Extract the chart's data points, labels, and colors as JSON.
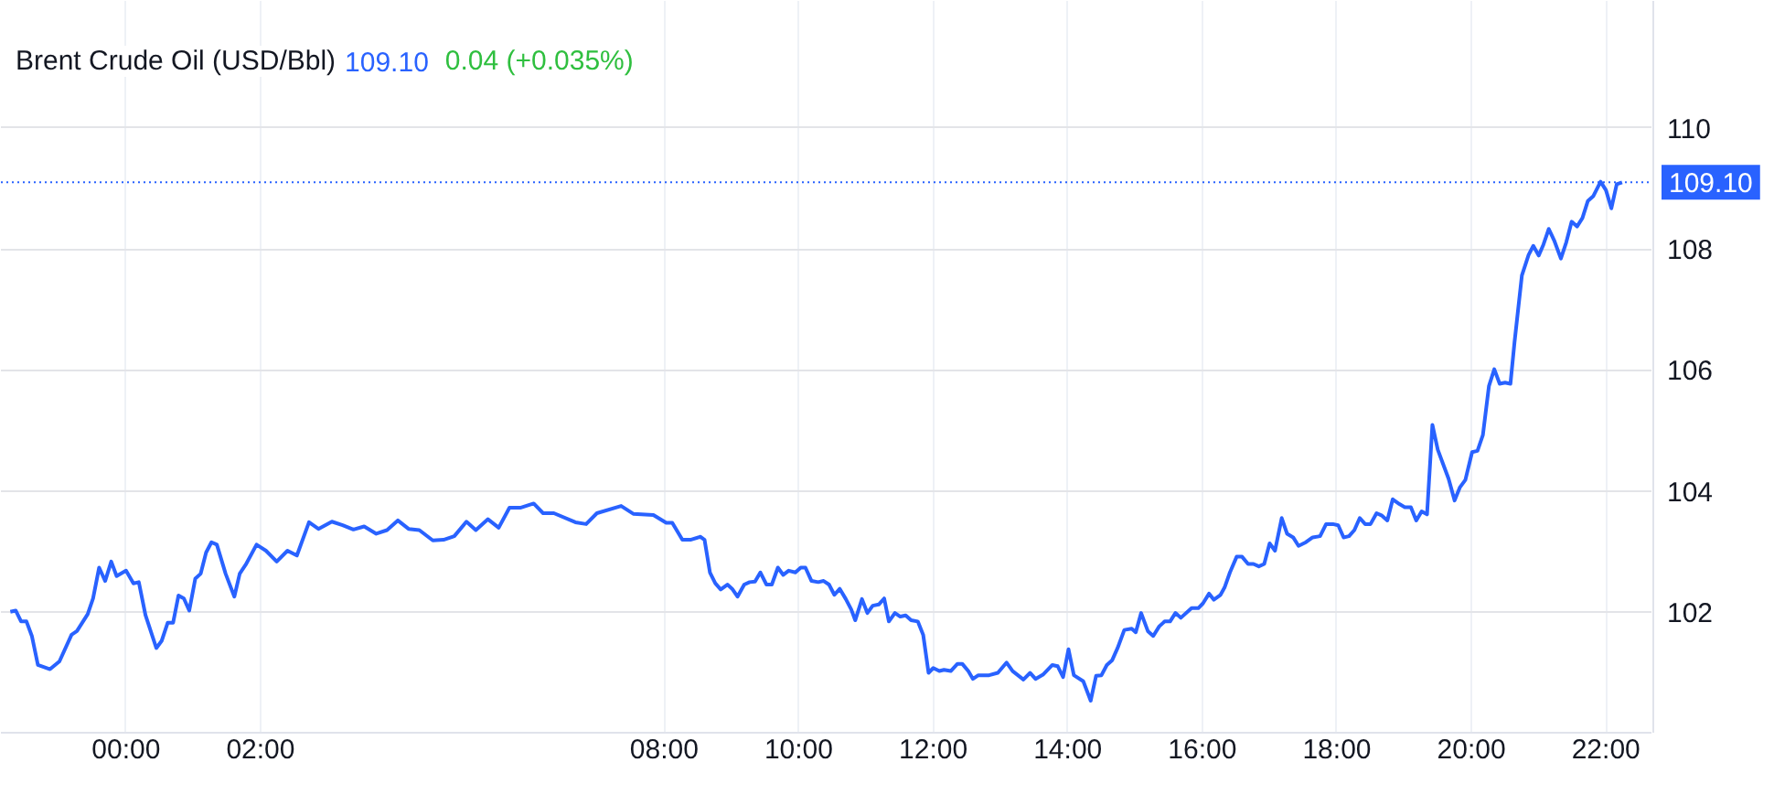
{
  "chart_data": {
    "type": "line",
    "title": "Brent Crude Oil (USD/Bbl)",
    "annotations": [
      "109.10",
      "0.04 (+0.035%)"
    ],
    "x": [
      -1.72,
      -1.64,
      -1.56,
      -1.48,
      -1.4,
      -1.31,
      -1.13,
      -0.99,
      -0.81,
      -0.73,
      -0.57,
      -0.49,
      -0.4,
      -0.31,
      -0.22,
      -0.14,
      0.0,
      0.11,
      0.19,
      0.29,
      0.45,
      0.53,
      0.62,
      0.7,
      0.78,
      0.86,
      0.94,
      1.03,
      1.11,
      1.19,
      1.27,
      1.35,
      1.48,
      1.61,
      1.69,
      1.78,
      1.94,
      2.08,
      2.24,
      2.4,
      2.54,
      2.72,
      2.86,
      3.06,
      3.22,
      3.38,
      3.54,
      3.72,
      3.88,
      4.04,
      4.2,
      4.36,
      4.56,
      4.72,
      4.88,
      5.06,
      5.2,
      5.38,
      5.54,
      5.7,
      5.86,
      6.06,
      6.2,
      6.36,
      6.68,
      6.84,
      7.0,
      7.36,
      7.54,
      7.84,
      8.03,
      8.12,
      8.27,
      8.39,
      8.54,
      8.6,
      8.68,
      8.76,
      8.84,
      8.94,
      9.01,
      9.09,
      9.19,
      9.27,
      9.35,
      9.43,
      9.52,
      9.6,
      9.69,
      9.77,
      9.85,
      9.95,
      10.03,
      10.1,
      10.19,
      10.29,
      10.37,
      10.45,
      10.53,
      10.61,
      10.7,
      10.78,
      10.84,
      10.94,
      11.02,
      11.1,
      11.19,
      11.27,
      11.34,
      11.43,
      11.51,
      11.59,
      11.67,
      11.77,
      11.85,
      11.93,
      12.0,
      12.09,
      12.16,
      12.26,
      12.36,
      12.43,
      12.52,
      12.59,
      12.67,
      12.83,
      12.96,
      13.09,
      13.18,
      13.34,
      13.44,
      13.52,
      13.63,
      13.77,
      13.85,
      13.93,
      14.01,
      14.09,
      14.23,
      14.34,
      14.42,
      14.5,
      14.58,
      14.66,
      14.74,
      14.84,
      14.95,
      15.01,
      15.09,
      15.19,
      15.27,
      15.36,
      15.44,
      15.52,
      15.6,
      15.68,
      15.84,
      15.94,
      16.01,
      16.1,
      16.17,
      16.27,
      16.33,
      16.41,
      16.51,
      16.59,
      16.68,
      16.76,
      16.84,
      16.92,
      17.0,
      17.08,
      17.18,
      17.26,
      17.35,
      17.43,
      17.54,
      17.64,
      17.75,
      17.84,
      17.94,
      18.02,
      18.1,
      18.18,
      18.26,
      18.34,
      18.42,
      18.5,
      18.59,
      18.67,
      18.75,
      18.83,
      18.93,
      19.01,
      19.1,
      19.18,
      19.26,
      19.34,
      19.42,
      19.5,
      19.58,
      19.66,
      19.75,
      19.83,
      19.91,
      20.01,
      20.09,
      20.17,
      20.26,
      20.34,
      20.42,
      20.5,
      20.58,
      20.64,
      20.75,
      20.85,
      20.92,
      21.0,
      21.07,
      21.15,
      21.23,
      21.33,
      21.41,
      21.49,
      21.57,
      21.65,
      21.73,
      21.81,
      21.92,
      22.0,
      22.08,
      22.16,
      22.24
    ],
    "series": [
      {
        "color": "#2962ff",
        "values": [
          102.0,
          102.02,
          101.84,
          101.84,
          101.6,
          101.12,
          101.05,
          101.18,
          101.62,
          101.68,
          101.96,
          102.22,
          102.73,
          102.51,
          102.83,
          102.59,
          102.68,
          102.47,
          102.49,
          101.94,
          101.4,
          101.52,
          101.82,
          101.82,
          102.27,
          102.22,
          102.02,
          102.55,
          102.63,
          102.98,
          103.15,
          103.11,
          102.63,
          102.25,
          102.63,
          102.78,
          103.11,
          103.01,
          102.83,
          103.01,
          102.93,
          103.48,
          103.37,
          103.49,
          103.43,
          103.36,
          103.41,
          103.29,
          103.35,
          103.51,
          103.37,
          103.35,
          103.18,
          103.19,
          103.25,
          103.49,
          103.35,
          103.53,
          103.39,
          103.72,
          103.72,
          103.79,
          103.63,
          103.63,
          103.48,
          103.45,
          103.63,
          103.75,
          103.62,
          103.6,
          103.47,
          103.47,
          103.19,
          103.19,
          103.24,
          103.19,
          102.65,
          102.47,
          102.37,
          102.45,
          102.38,
          102.25,
          102.45,
          102.49,
          102.5,
          102.65,
          102.45,
          102.45,
          102.73,
          102.61,
          102.68,
          102.65,
          102.73,
          102.73,
          102.51,
          102.49,
          102.51,
          102.45,
          102.28,
          102.38,
          102.21,
          102.04,
          101.86,
          102.21,
          101.98,
          102.1,
          102.12,
          102.22,
          101.84,
          101.98,
          101.92,
          101.94,
          101.86,
          101.84,
          101.62,
          100.99,
          101.07,
          101.02,
          101.04,
          101.02,
          101.14,
          101.14,
          101.02,
          100.89,
          100.95,
          100.95,
          100.99,
          101.16,
          101.02,
          100.88,
          100.99,
          100.89,
          100.96,
          101.12,
          101.1,
          100.92,
          101.38,
          100.95,
          100.85,
          100.53,
          100.94,
          100.95,
          101.12,
          101.2,
          101.4,
          101.7,
          101.72,
          101.66,
          101.98,
          101.68,
          101.6,
          101.76,
          101.84,
          101.84,
          101.98,
          101.9,
          102.06,
          102.06,
          102.14,
          102.3,
          102.2,
          102.28,
          102.4,
          102.65,
          102.91,
          102.91,
          102.79,
          102.79,
          102.75,
          102.79,
          103.13,
          103.01,
          103.55,
          103.29,
          103.23,
          103.09,
          103.15,
          103.23,
          103.25,
          103.45,
          103.45,
          103.43,
          103.23,
          103.25,
          103.35,
          103.55,
          103.45,
          103.45,
          103.63,
          103.59,
          103.51,
          103.86,
          103.78,
          103.73,
          103.73,
          103.51,
          103.66,
          103.61,
          105.09,
          104.68,
          104.44,
          104.2,
          103.84,
          104.06,
          104.18,
          104.64,
          104.66,
          104.92,
          105.73,
          106.01,
          105.77,
          105.79,
          105.77,
          106.45,
          107.56,
          107.9,
          108.05,
          107.89,
          108.07,
          108.33,
          108.14,
          107.84,
          108.11,
          108.45,
          108.37,
          108.51,
          108.79,
          108.87,
          109.11,
          108.97,
          108.67,
          109.07,
          109.1
        ]
      }
    ],
    "xlim": [
      -1.86,
      22.69
    ],
    "ylim": [
      100,
      112.1
    ],
    "xticks": [
      {
        "value": 0,
        "label": "00:00"
      },
      {
        "value": 2,
        "label": "02:00"
      },
      {
        "value": 8,
        "label": "08:00"
      },
      {
        "value": 10,
        "label": "10:00"
      },
      {
        "value": 12,
        "label": "12:00"
      },
      {
        "value": 14,
        "label": "14:00"
      },
      {
        "value": 16,
        "label": "16:00"
      },
      {
        "value": 18,
        "label": "18:00"
      },
      {
        "value": 20,
        "label": "20:00"
      },
      {
        "value": 22,
        "label": "22:00"
      }
    ],
    "yticks": [
      102,
      104,
      106,
      108,
      110
    ],
    "grid": true,
    "ref_lines": [
      {
        "axis": "y",
        "value": 109.1,
        "label": "109.10",
        "color": "#2962ff",
        "line_style": "dotted"
      }
    ]
  }
}
